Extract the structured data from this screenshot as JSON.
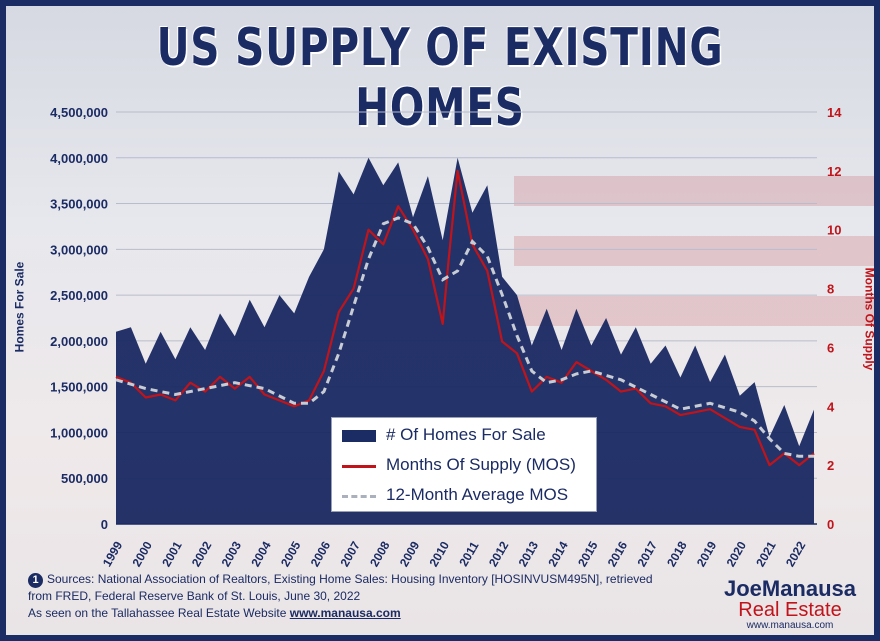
{
  "title": "US SUPPLY OF EXISTING HOMES",
  "colors": {
    "navy": "#1b2b63",
    "red": "#c0141a",
    "gray_dash": "#c8ccd4"
  },
  "chart_data": {
    "type": "area",
    "ylabel": "Homes For Sale",
    "y2label": "Months Of Supply",
    "ylim": [
      0,
      4500000
    ],
    "y2lim": [
      0,
      14
    ],
    "yticks": [
      "4,500,000",
      "4,000,000",
      "3,500,000",
      "3,000,000",
      "2,500,000",
      "2,000,000",
      "1,500,000",
      "1,000,000",
      "500,000",
      "0"
    ],
    "y2ticks": [
      "14",
      "12",
      "10",
      "8",
      "6",
      "4",
      "2",
      "0"
    ],
    "xticks": [
      "1999",
      "2000",
      "2001",
      "2002",
      "2003",
      "2004",
      "2005",
      "2006",
      "2007",
      "2008",
      "2009",
      "2010",
      "2011",
      "2012",
      "2013",
      "2014",
      "2015",
      "2016",
      "2017",
      "2018",
      "2019",
      "2020",
      "2021",
      "2022"
    ],
    "legend_position": "bottom-center",
    "series": [
      {
        "name": "# Of Homes For Sale",
        "axis": "left",
        "x": [
          1999.0,
          1999.5,
          2000.0,
          2000.5,
          2001.0,
          2001.5,
          2002.0,
          2002.5,
          2003.0,
          2003.5,
          2004.0,
          2004.5,
          2005.0,
          2005.5,
          2006.0,
          2006.5,
          2007.0,
          2007.5,
          2008.0,
          2008.5,
          2009.0,
          2009.5,
          2010.0,
          2010.5,
          2011.0,
          2011.5,
          2012.0,
          2012.5,
          2013.0,
          2013.5,
          2014.0,
          2014.5,
          2015.0,
          2015.5,
          2016.0,
          2016.5,
          2017.0,
          2017.5,
          2018.0,
          2018.5,
          2019.0,
          2019.5,
          2020.0,
          2020.5,
          2021.0,
          2021.5,
          2022.0,
          2022.5
        ],
        "values": [
          2100000,
          2150000,
          1750000,
          2100000,
          1800000,
          2150000,
          1900000,
          2300000,
          2050000,
          2450000,
          2150000,
          2500000,
          2300000,
          2700000,
          3000000,
          3850000,
          3600000,
          4000000,
          3700000,
          3950000,
          3350000,
          3800000,
          3100000,
          4000000,
          3400000,
          3700000,
          2700000,
          2500000,
          1950000,
          2350000,
          1900000,
          2350000,
          1950000,
          2250000,
          1850000,
          2150000,
          1750000,
          1950000,
          1600000,
          1950000,
          1550000,
          1850000,
          1400000,
          1550000,
          950000,
          1300000,
          850000,
          1250000
        ]
      },
      {
        "name": "Months Of Supply (MOS)",
        "axis": "right",
        "x": [
          1999.0,
          1999.5,
          2000.0,
          2000.5,
          2001.0,
          2001.5,
          2002.0,
          2002.5,
          2003.0,
          2003.5,
          2004.0,
          2004.5,
          2005.0,
          2005.5,
          2006.0,
          2006.5,
          2007.0,
          2007.5,
          2008.0,
          2008.5,
          2009.0,
          2009.5,
          2010.0,
          2010.2,
          2010.5,
          2011.0,
          2011.5,
          2012.0,
          2012.5,
          2013.0,
          2013.5,
          2014.0,
          2014.5,
          2015.0,
          2015.5,
          2016.0,
          2016.5,
          2017.0,
          2017.5,
          2018.0,
          2018.5,
          2019.0,
          2019.5,
          2020.0,
          2020.5,
          2021.0,
          2021.5,
          2022.0,
          2022.5
        ],
        "values": [
          5.0,
          4.8,
          4.3,
          4.4,
          4.2,
          4.8,
          4.5,
          5.0,
          4.6,
          5.0,
          4.4,
          4.2,
          4.0,
          4.2,
          5.2,
          7.2,
          8.0,
          10.0,
          9.5,
          10.8,
          10.0,
          9.0,
          6.8,
          9.0,
          12.0,
          9.5,
          8.6,
          6.2,
          5.8,
          4.5,
          5.0,
          4.8,
          5.5,
          5.2,
          4.9,
          4.5,
          4.6,
          4.1,
          4.0,
          3.7,
          3.8,
          3.9,
          3.6,
          3.3,
          3.2,
          2.0,
          2.4,
          2.0,
          2.4
        ]
      },
      {
        "name": "12-Month Average MOS",
        "axis": "right",
        "x": [
          1999.0,
          2000.0,
          2001.0,
          2002.0,
          2003.0,
          2004.0,
          2005.0,
          2005.5,
          2006.0,
          2006.5,
          2007.0,
          2007.5,
          2008.0,
          2008.5,
          2009.0,
          2009.5,
          2010.0,
          2010.5,
          2011.0,
          2011.5,
          2012.0,
          2012.5,
          2013.0,
          2013.5,
          2014.0,
          2014.5,
          2015.0,
          2016.0,
          2017.0,
          2018.0,
          2019.0,
          2020.0,
          2020.5,
          2021.0,
          2021.5,
          2022.0,
          2022.5
        ],
        "values": [
          4.9,
          4.6,
          4.4,
          4.6,
          4.8,
          4.6,
          4.1,
          4.1,
          4.5,
          5.8,
          7.4,
          9.0,
          10.2,
          10.4,
          10.2,
          9.4,
          8.3,
          8.6,
          9.6,
          9.1,
          7.8,
          6.4,
          5.2,
          4.8,
          4.9,
          5.1,
          5.2,
          4.9,
          4.4,
          3.9,
          4.1,
          3.8,
          3.5,
          2.9,
          2.4,
          2.3,
          2.3
        ]
      }
    ]
  },
  "legend": {
    "homes": "# Of Homes For Sale",
    "mos": "Months Of Supply (MOS)",
    "avg": "12-Month Average MOS"
  },
  "sources": {
    "marker": "1",
    "line1": "Sources: National Association of Realtors, Existing Home Sales: Housing Inventory [HOSINVUSM495N], retrieved",
    "line2": "from FRED, Federal Reserve Bank of St. Louis, June 30, 2022",
    "line3_prefix": "As seen on the Tallahassee Real Estate Website",
    "line3_link": "www.manausa.com"
  },
  "logo": {
    "name_a": "Joe",
    "name_b": "Manausa",
    "subtitle": "Real Estate",
    "url": "www.manausa.com"
  }
}
